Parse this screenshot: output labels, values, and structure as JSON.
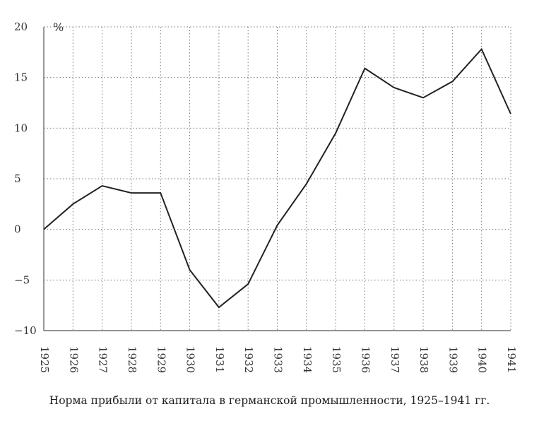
{
  "chart_data": {
    "type": "line",
    "title": "",
    "caption": "Норма прибыли от капитала в германской промышленности, 1925–1941 гг.",
    "ylabel": "%",
    "xlabel": "",
    "ylim": [
      -10,
      20
    ],
    "yticks": [
      20,
      15,
      10,
      5,
      0,
      -5,
      -10
    ],
    "ytick_labels": [
      "20",
      "15",
      "10",
      "5",
      "0",
      "−5",
      "−10"
    ],
    "grid": true,
    "x": [
      "1925",
      "1926",
      "1927",
      "1928",
      "1929",
      "1930",
      "1931",
      "1932",
      "1933",
      "1934",
      "1935",
      "1936",
      "1937",
      "1938",
      "1939",
      "1940",
      "1941"
    ],
    "series": [
      {
        "values": [
          0.0,
          2.5,
          4.3,
          3.6,
          3.6,
          -4.0,
          -7.7,
          -5.4,
          0.4,
          4.5,
          9.5,
          15.9,
          14.0,
          13.0,
          14.6,
          17.8,
          11.4
        ]
      }
    ]
  }
}
